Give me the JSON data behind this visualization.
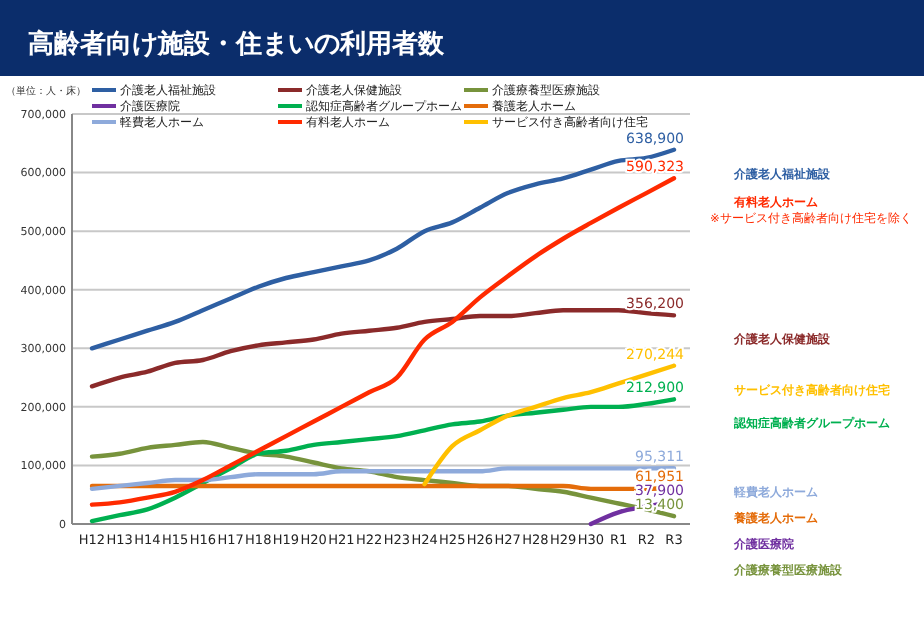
{
  "chart_data": {
    "type": "line",
    "title": "高齢者向け施設・住まいの利用者数",
    "ylabel": "（単位：人・床）",
    "categories": [
      "H12",
      "H13",
      "H14",
      "H15",
      "H16",
      "H17",
      "H18",
      "H19",
      "H20",
      "H21",
      "H22",
      "H23",
      "H24",
      "H25",
      "H26",
      "H27",
      "H28",
      "H29",
      "H30",
      "R1",
      "R2",
      "R3"
    ],
    "ylim": [
      0,
      700000
    ],
    "yticks": [
      {
        "value": 0,
        "label": "0"
      },
      {
        "value": 100000,
        "label": "100,000"
      },
      {
        "value": 200000,
        "label": "200,000"
      },
      {
        "value": 300000,
        "label": "300,000"
      },
      {
        "value": 400000,
        "label": "400,000"
      },
      {
        "value": 500000,
        "label": "500,000"
      },
      {
        "value": 600000,
        "label": "600,000"
      },
      {
        "value": 700000,
        "label": "700,000"
      }
    ],
    "grid": "y",
    "legend": "top left",
    "marker": "none",
    "line_style": "solid",
    "series": [
      {
        "name": "介護老人福祉施設",
        "color": "#2e5fa3",
        "values": [
          300000,
          315000,
          330000,
          345000,
          365000,
          385000,
          405000,
          420000,
          430000,
          440000,
          450000,
          470000,
          500000,
          515000,
          540000,
          565000,
          580000,
          590000,
          605000,
          620000,
          625000,
          638900
        ],
        "value_labels": [
          null,
          null,
          null,
          null,
          null,
          null,
          null,
          null,
          null,
          null,
          null,
          null,
          null,
          null,
          null,
          null,
          null,
          null,
          null,
          null,
          null,
          "638,900"
        ]
      },
      {
        "name": "介護老人保健施設",
        "color": "#8b2a2a",
        "values": [
          235000,
          250000,
          260000,
          275000,
          280000,
          295000,
          305000,
          310000,
          315000,
          325000,
          330000,
          335000,
          345000,
          350000,
          355000,
          355000,
          360000,
          365000,
          365000,
          365000,
          360000,
          356200
        ],
        "value_labels": [
          null,
          null,
          null,
          null,
          null,
          null,
          null,
          null,
          null,
          null,
          null,
          null,
          null,
          null,
          null,
          null,
          null,
          null,
          null,
          null,
          null,
          "356,200"
        ]
      },
      {
        "name": "介護療養型医療施設",
        "color": "#77933c",
        "values": [
          115000,
          120000,
          130000,
          135000,
          140000,
          130000,
          120000,
          115000,
          105000,
          95000,
          90000,
          80000,
          75000,
          70000,
          65000,
          65000,
          60000,
          55000,
          45000,
          35000,
          25000,
          13400
        ],
        "value_labels": [
          null,
          null,
          null,
          null,
          null,
          null,
          null,
          null,
          null,
          null,
          null,
          null,
          null,
          null,
          null,
          null,
          null,
          null,
          null,
          null,
          null,
          "13,400"
        ]
      },
      {
        "name": "介護医療院",
        "color": "#7030a0",
        "values": [
          null,
          null,
          null,
          null,
          null,
          null,
          null,
          null,
          null,
          null,
          null,
          null,
          null,
          null,
          null,
          null,
          null,
          null,
          0,
          20000,
          30000,
          37900
        ],
        "value_labels": [
          null,
          null,
          null,
          null,
          null,
          null,
          null,
          null,
          null,
          null,
          null,
          null,
          null,
          null,
          null,
          null,
          null,
          null,
          null,
          null,
          null,
          "37,900"
        ]
      },
      {
        "name": "認知症高齢者グループホーム",
        "color": "#00b050",
        "values": [
          5000,
          15000,
          25000,
          45000,
          70000,
          95000,
          120000,
          125000,
          135000,
          140000,
          145000,
          150000,
          160000,
          170000,
          175000,
          185000,
          190000,
          195000,
          200000,
          200000,
          205000,
          212900
        ],
        "value_labels": [
          null,
          null,
          null,
          null,
          null,
          null,
          null,
          null,
          null,
          null,
          null,
          null,
          null,
          null,
          null,
          null,
          null,
          null,
          null,
          null,
          null,
          "212,900"
        ]
      },
      {
        "name": "養護老人ホーム",
        "color": "#e46c0a",
        "values": [
          65000,
          65000,
          65000,
          65000,
          65000,
          65000,
          65000,
          65000,
          65000,
          65000,
          65000,
          65000,
          65000,
          65000,
          65000,
          65000,
          65000,
          65000,
          60000,
          60000,
          60000,
          61951
        ],
        "value_labels": [
          null,
          null,
          null,
          null,
          null,
          null,
          null,
          null,
          null,
          null,
          null,
          null,
          null,
          null,
          null,
          null,
          null,
          null,
          null,
          null,
          null,
          "61,951"
        ]
      },
      {
        "name": "軽費老人ホーム",
        "color": "#8eaadb",
        "values": [
          60000,
          65000,
          70000,
          75000,
          75000,
          80000,
          85000,
          85000,
          85000,
          90000,
          90000,
          90000,
          90000,
          90000,
          90000,
          95000,
          95000,
          95000,
          95000,
          95000,
          95000,
          95311
        ],
        "value_labels": [
          null,
          null,
          null,
          null,
          null,
          null,
          null,
          null,
          null,
          null,
          null,
          null,
          null,
          null,
          null,
          null,
          null,
          null,
          null,
          null,
          null,
          "95,311"
        ]
      },
      {
        "name": "有料老人ホーム",
        "color": "#ff2a00",
        "values": [
          33000,
          37000,
          45000,
          55000,
          75000,
          100000,
          125000,
          150000,
          175000,
          200000,
          225000,
          250000,
          315000,
          345000,
          387000,
          423000,
          457000,
          487000,
          514000,
          540000,
          565000,
          590323
        ],
        "value_labels": [
          null,
          null,
          null,
          null,
          null,
          null,
          null,
          null,
          null,
          null,
          null,
          null,
          null,
          null,
          null,
          null,
          null,
          null,
          null,
          null,
          null,
          "590,323"
        ]
      },
      {
        "name": "サービス付き高齢者向け住宅",
        "color": "#ffc000",
        "values": [
          null,
          null,
          null,
          null,
          null,
          null,
          null,
          null,
          null,
          null,
          null,
          null,
          68000,
          133000,
          160000,
          185000,
          200000,
          215000,
          225000,
          240000,
          255000,
          270244
        ],
        "value_labels": [
          null,
          null,
          null,
          null,
          null,
          null,
          null,
          null,
          null,
          null,
          null,
          null,
          null,
          null,
          null,
          null,
          null,
          null,
          null,
          null,
          null,
          "270,244"
        ]
      }
    ],
    "annotations": [
      "※サービス付き高齢者向け住宅を除く"
    ]
  }
}
